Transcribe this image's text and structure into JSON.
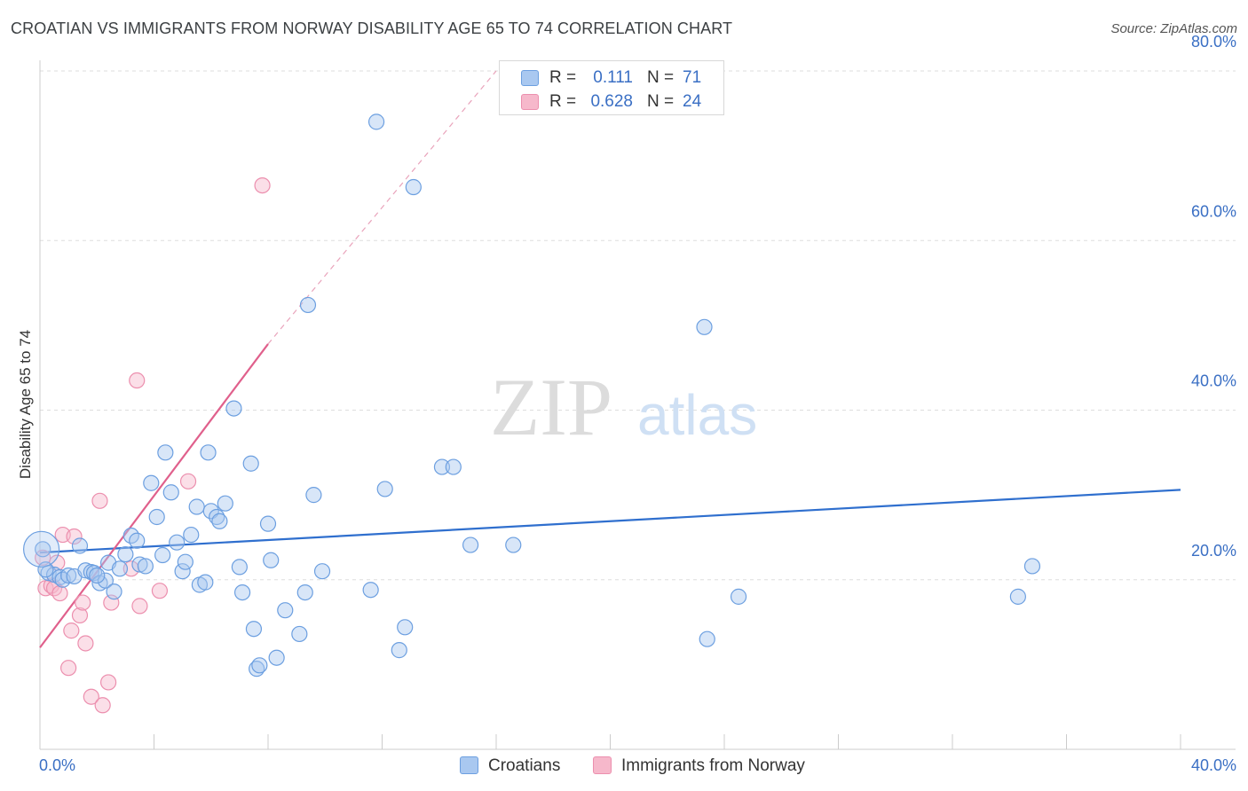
{
  "title": "CROATIAN VS IMMIGRANTS FROM NORWAY DISABILITY AGE 65 TO 74 CORRELATION CHART",
  "source": "Source: ZipAtlas.com",
  "watermark": {
    "zip": "ZIP",
    "atlas": "atlas"
  },
  "legend": {
    "rows": [
      {
        "r_label": "R =",
        "r_value": "0.111",
        "n_label": "N =",
        "n_value": "71"
      },
      {
        "r_label": "R =",
        "r_value": "0.628",
        "n_label": "N =",
        "n_value": "24"
      }
    ]
  },
  "bottom_legend": {
    "series1": "Croatians",
    "series2": "Immigrants from Norway"
  },
  "colors": {
    "croatians_fill": "#a9c8f0",
    "croatians_stroke": "#6c9fe0",
    "croatians_line": "#2f6fce",
    "norway_fill": "#f6b8cb",
    "norway_stroke": "#ec8fae",
    "norway_line": "#e0608c",
    "axis_text": "#3a6fc4",
    "grid": "#dddddd"
  },
  "chart_data": {
    "type": "scatter",
    "title": "CROATIAN VS IMMIGRANTS FROM NORWAY DISABILITY AGE 65 TO 74 CORRELATION CHART",
    "xlabel": "",
    "ylabel": "Disability Age 65 to 74",
    "xlim": [
      0,
      40
    ],
    "ylim": [
      0,
      80
    ],
    "x_tick_labels": [
      {
        "value": 0,
        "label": "0.0%"
      },
      {
        "value": 40,
        "label": "40.0%"
      }
    ],
    "y_tick_labels": [
      {
        "value": 20,
        "label": "20.0%"
      },
      {
        "value": 40,
        "label": "40.0%"
      },
      {
        "value": 60,
        "label": "60.0%"
      },
      {
        "value": 80,
        "label": "80.0%"
      }
    ],
    "grid": true,
    "series": [
      {
        "name": "Croatians",
        "R": 0.111,
        "N": 71,
        "trend": {
          "x": [
            0,
            40
          ],
          "y": [
            23.2,
            30.6
          ],
          "style": "solid"
        },
        "points": [
          [
            0.1,
            23.6
          ],
          [
            0.3,
            20.8
          ],
          [
            0.5,
            20.6
          ],
          [
            0.7,
            20.3
          ],
          [
            0.8,
            20.0
          ],
          [
            1.0,
            20.5
          ],
          [
            1.2,
            20.4
          ],
          [
            1.4,
            24.0
          ],
          [
            1.6,
            21.1
          ],
          [
            1.8,
            20.9
          ],
          [
            1.9,
            20.8
          ],
          [
            2.1,
            19.6
          ],
          [
            2.3,
            19.9
          ],
          [
            2.4,
            22.0
          ],
          [
            2.6,
            18.6
          ],
          [
            2.8,
            21.3
          ],
          [
            3.0,
            23.0
          ],
          [
            3.2,
            25.2
          ],
          [
            3.4,
            24.6
          ],
          [
            3.5,
            21.8
          ],
          [
            3.7,
            21.6
          ],
          [
            3.9,
            31.4
          ],
          [
            4.1,
            27.4
          ],
          [
            4.3,
            22.9
          ],
          [
            4.4,
            35.0
          ],
          [
            4.6,
            30.3
          ],
          [
            4.8,
            24.4
          ],
          [
            5.0,
            21.0
          ],
          [
            5.1,
            22.1
          ],
          [
            5.3,
            25.3
          ],
          [
            5.5,
            28.6
          ],
          [
            5.6,
            19.4
          ],
          [
            5.8,
            19.7
          ],
          [
            5.9,
            35.0
          ],
          [
            6.0,
            28.1
          ],
          [
            6.2,
            27.4
          ],
          [
            6.3,
            26.9
          ],
          [
            6.5,
            29.0
          ],
          [
            6.8,
            40.2
          ],
          [
            7.0,
            21.5
          ],
          [
            7.1,
            18.5
          ],
          [
            7.4,
            33.7
          ],
          [
            7.5,
            14.2
          ],
          [
            7.6,
            9.5
          ],
          [
            7.7,
            9.9
          ],
          [
            8.0,
            26.6
          ],
          [
            8.1,
            22.3
          ],
          [
            8.3,
            10.8
          ],
          [
            8.6,
            16.4
          ],
          [
            9.1,
            13.6
          ],
          [
            9.4,
            52.4
          ],
          [
            9.6,
            30.0
          ],
          [
            9.3,
            18.5
          ],
          [
            9.9,
            21.0
          ],
          [
            11.6,
            18.8
          ],
          [
            11.8,
            74.0
          ],
          [
            12.1,
            30.7
          ],
          [
            12.6,
            11.7
          ],
          [
            12.8,
            14.4
          ],
          [
            13.1,
            66.3
          ],
          [
            14.1,
            33.3
          ],
          [
            14.5,
            33.3
          ],
          [
            15.1,
            24.1
          ],
          [
            16.6,
            24.1
          ],
          [
            23.3,
            49.8
          ],
          [
            23.4,
            13.0
          ],
          [
            24.5,
            18.0
          ],
          [
            34.3,
            18.0
          ],
          [
            34.8,
            21.6
          ],
          [
            0.2,
            21.2
          ],
          [
            2.0,
            20.5
          ]
        ]
      },
      {
        "name": "Immigrants from Norway",
        "R": 0.628,
        "N": 24,
        "trend": {
          "x": [
            0,
            8.0
          ],
          "y": [
            12.0,
            47.8
          ],
          "extended_to": [
            16.0,
            80.0
          ],
          "style": "solid+dashed"
        },
        "points": [
          [
            0.1,
            22.6
          ],
          [
            0.2,
            19.0
          ],
          [
            0.4,
            19.3
          ],
          [
            0.5,
            19.0
          ],
          [
            0.6,
            22.0
          ],
          [
            0.7,
            18.4
          ],
          [
            0.8,
            25.3
          ],
          [
            1.0,
            9.6
          ],
          [
            1.1,
            14.0
          ],
          [
            1.2,
            25.1
          ],
          [
            1.4,
            15.8
          ],
          [
            1.5,
            17.3
          ],
          [
            1.6,
            12.5
          ],
          [
            1.8,
            6.2
          ],
          [
            2.1,
            29.3
          ],
          [
            2.2,
            5.2
          ],
          [
            2.4,
            7.9
          ],
          [
            2.5,
            17.3
          ],
          [
            3.2,
            21.3
          ],
          [
            3.4,
            43.5
          ],
          [
            3.5,
            16.9
          ],
          [
            4.2,
            18.7
          ],
          [
            5.2,
            31.6
          ],
          [
            7.8,
            66.5
          ]
        ]
      }
    ]
  }
}
